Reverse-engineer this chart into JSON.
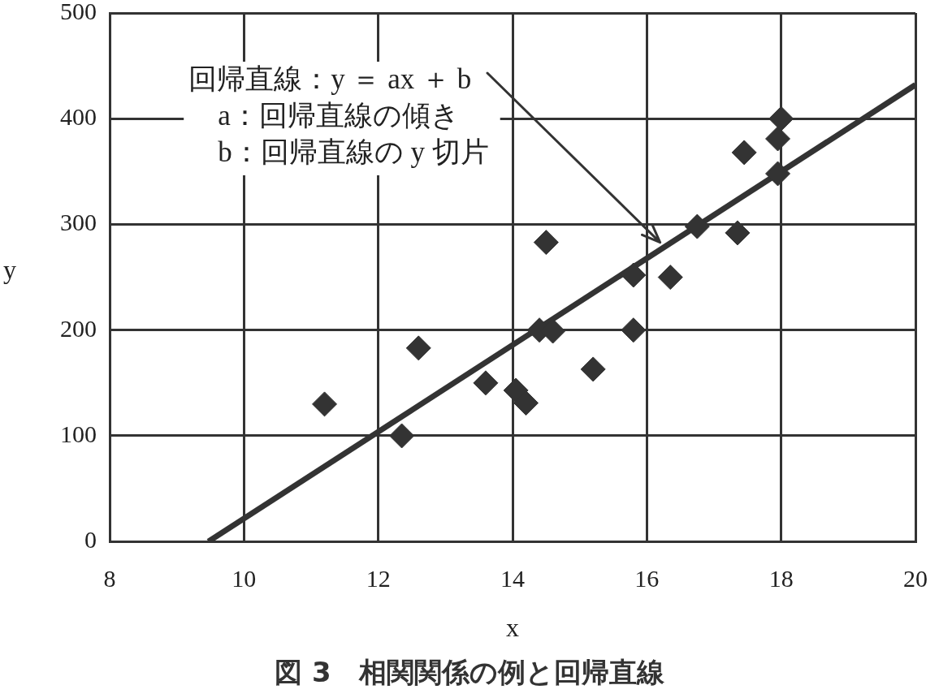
{
  "chart_data": {
    "type": "scatter",
    "title": "図 3　相関関係の例と回帰直線",
    "xlabel": "x",
    "ylabel": "y",
    "annotations": [
      {
        "text": "回帰直線：y ＝ ax ＋ b",
        "x": 16.2,
        "y": 283
      },
      "a：回帰直線の傾き",
      "b：回帰直線の y 切片"
    ],
    "x": [
      11.2,
      12.35,
      12.6,
      13.6,
      14.05,
      14.2,
      14.4,
      14.6,
      14.5,
      15.2,
      15.8,
      15.8,
      16.35,
      16.75,
      17.35,
      17.45,
      17.95,
      17.95,
      18
    ],
    "series": [
      {
        "color": "#333333",
        "values": [
          130,
          100,
          183,
          150,
          143,
          131,
          200,
          199,
          283,
          163,
          252,
          200,
          250,
          298,
          292,
          368,
          348,
          381,
          400
        ]
      },
      {
        "type": "line",
        "color": "#333333",
        "x": [
          9.47,
          20
        ],
        "values": [
          0,
          432
        ],
        "marker": "none"
      }
    ],
    "xlim": [
      8,
      20
    ],
    "ylim": [
      0,
      500
    ],
    "xticks": [
      8,
      10,
      12,
      14,
      16,
      18,
      20
    ],
    "yticks": [
      0,
      100,
      200,
      300,
      400,
      500
    ],
    "grid": true,
    "marker": "diamond"
  }
}
